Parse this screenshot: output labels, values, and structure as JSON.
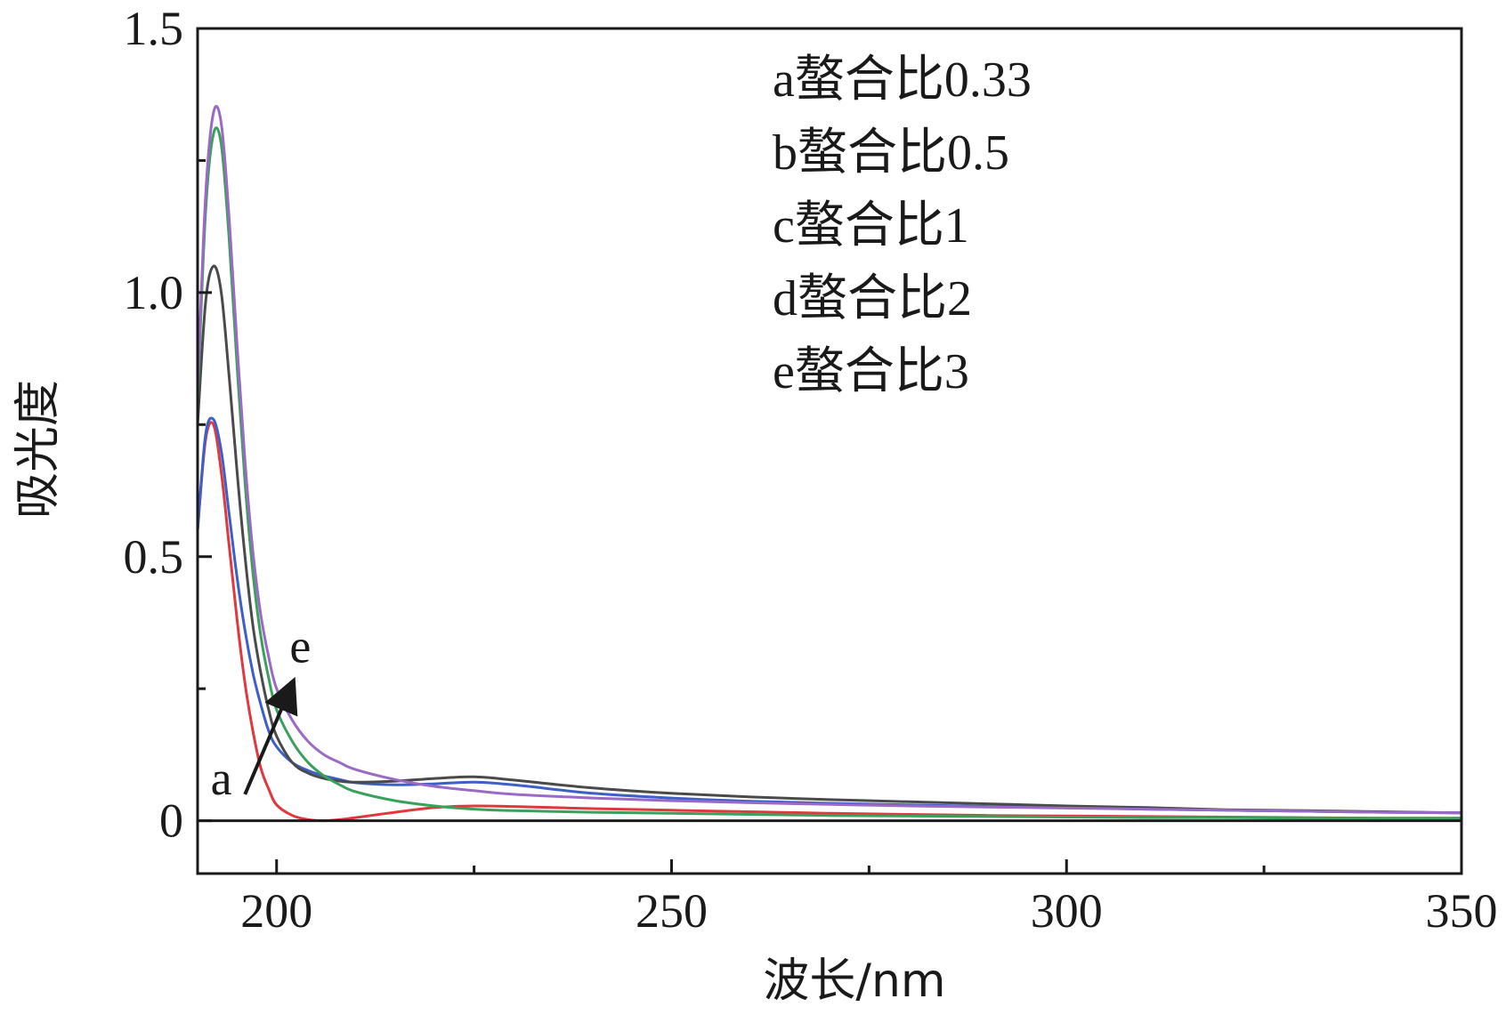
{
  "chart_data": {
    "type": "line",
    "title": "",
    "xlabel": "波长/nm",
    "ylabel": "吸光度",
    "xlim": [
      190,
      350
    ],
    "ylim": [
      -0.1,
      1.5
    ],
    "x_ticks": [
      200,
      250,
      300,
      350
    ],
    "x_tick_labels": [
      "200",
      "250",
      "300",
      "350"
    ],
    "y_ticks": [
      0,
      0.5,
      1.0,
      1.5
    ],
    "y_tick_labels": [
      "0",
      "0.5",
      "1.0",
      "1.5"
    ],
    "grid": false,
    "legend_position": "top-right",
    "legend": [
      "a螯合比0.33",
      "b螯合比0.5",
      "c螯合比1",
      "d螯合比2",
      "e螯合比3"
    ],
    "annotations": [
      {
        "text": "a",
        "x": 193,
        "y": 0.05
      },
      {
        "text": "e",
        "x": 203,
        "y": 0.3
      },
      {
        "type": "arrow",
        "from": [
          196,
          0.05
        ],
        "to": [
          202,
          0.26
        ]
      }
    ],
    "series": [
      {
        "name": "a螯合比0.33",
        "color": "#e0383e",
        "x": [
          190,
          191,
          192,
          193,
          194,
          195,
          196,
          197,
          198,
          199,
          200,
          202,
          204,
          206,
          208,
          210,
          215,
          220,
          225,
          230,
          240,
          250,
          260,
          270,
          280,
          290,
          300,
          310,
          320,
          330,
          340,
          350
        ],
        "y": [
          0.55,
          0.72,
          0.75,
          0.66,
          0.52,
          0.38,
          0.26,
          0.17,
          0.1,
          0.06,
          0.03,
          0.01,
          0.002,
          0.0,
          0.002,
          0.006,
          0.016,
          0.025,
          0.028,
          0.027,
          0.023,
          0.02,
          0.017,
          0.014,
          0.012,
          0.01,
          0.009,
          0.008,
          0.007,
          0.006,
          0.005,
          0.005
        ]
      },
      {
        "name": "b螯合比0.5",
        "color": "#3d5fc8",
        "x": [
          190,
          191,
          192,
          193,
          194,
          195,
          196,
          197,
          198,
          199,
          200,
          202,
          204,
          206,
          208,
          210,
          215,
          220,
          225,
          230,
          240,
          250,
          260,
          270,
          280,
          290,
          300,
          310,
          320,
          330,
          340,
          350
        ],
        "y": [
          0.55,
          0.73,
          0.76,
          0.7,
          0.58,
          0.46,
          0.36,
          0.28,
          0.22,
          0.17,
          0.14,
          0.11,
          0.095,
          0.085,
          0.078,
          0.072,
          0.068,
          0.07,
          0.073,
          0.068,
          0.052,
          0.043,
          0.037,
          0.033,
          0.03,
          0.027,
          0.025,
          0.022,
          0.02,
          0.018,
          0.016,
          0.015
        ]
      },
      {
        "name": "c螯合比1",
        "color": "#4a4a4a",
        "x": [
          190,
          191,
          192,
          193,
          194,
          195,
          196,
          197,
          198,
          199,
          200,
          202,
          204,
          206,
          208,
          210,
          215,
          220,
          225,
          230,
          240,
          250,
          260,
          270,
          280,
          290,
          300,
          310,
          320,
          330,
          340,
          350
        ],
        "y": [
          0.75,
          0.98,
          1.05,
          1.0,
          0.84,
          0.66,
          0.5,
          0.37,
          0.28,
          0.21,
          0.16,
          0.11,
          0.09,
          0.08,
          0.075,
          0.073,
          0.075,
          0.08,
          0.083,
          0.077,
          0.062,
          0.052,
          0.045,
          0.04,
          0.036,
          0.032,
          0.028,
          0.025,
          0.021,
          0.019,
          0.017,
          0.015
        ]
      },
      {
        "name": "d螯合比2",
        "color": "#3aa15c",
        "x": [
          190,
          191,
          192,
          193,
          194,
          195,
          196,
          197,
          198,
          199,
          200,
          202,
          204,
          206,
          208,
          210,
          215,
          220,
          225,
          230,
          240,
          250,
          260,
          270,
          280,
          290,
          300,
          310,
          320,
          330,
          340,
          350
        ],
        "y": [
          0.8,
          1.15,
          1.3,
          1.28,
          1.1,
          0.86,
          0.64,
          0.47,
          0.35,
          0.27,
          0.21,
          0.15,
          0.11,
          0.085,
          0.068,
          0.055,
          0.038,
          0.028,
          0.022,
          0.019,
          0.016,
          0.014,
          0.012,
          0.01,
          0.009,
          0.008,
          0.007,
          0.006,
          0.006,
          0.005,
          0.005,
          0.005
        ]
      },
      {
        "name": "e螯合比3",
        "color": "#9a6ac4",
        "x": [
          190,
          191,
          192,
          193,
          194,
          195,
          196,
          197,
          198,
          199,
          200,
          202,
          204,
          206,
          208,
          210,
          215,
          220,
          225,
          230,
          240,
          250,
          260,
          270,
          280,
          290,
          300,
          310,
          320,
          330,
          340,
          350
        ],
        "y": [
          0.82,
          1.18,
          1.34,
          1.32,
          1.14,
          0.9,
          0.68,
          0.51,
          0.39,
          0.31,
          0.25,
          0.19,
          0.15,
          0.125,
          0.11,
          0.097,
          0.078,
          0.065,
          0.057,
          0.05,
          0.043,
          0.038,
          0.034,
          0.031,
          0.028,
          0.026,
          0.024,
          0.022,
          0.02,
          0.018,
          0.016,
          0.015
        ]
      }
    ]
  }
}
